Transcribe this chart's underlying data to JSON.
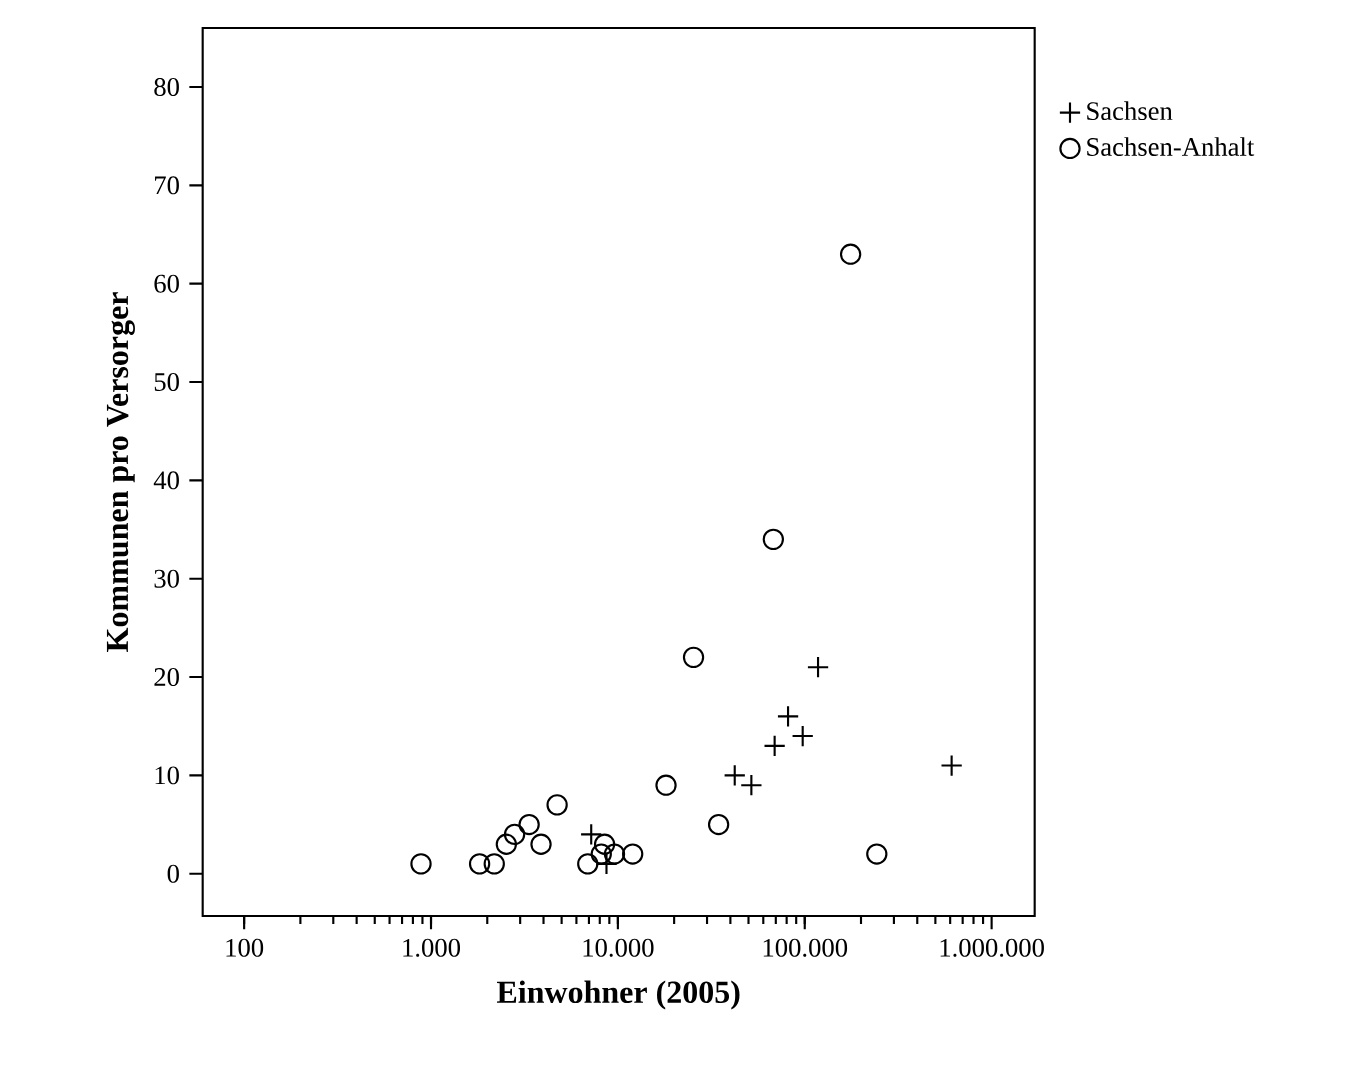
{
  "chart_data": {
    "type": "scatter",
    "xlabel": "Einwohner (2005)",
    "ylabel": "Kommunen pro Versorger",
    "log": "x",
    "legend": "right",
    "grid": false,
    "xlim": [
      60,
      1700000
    ],
    "ylim": [
      -4.3,
      86
    ],
    "xticks": [
      100,
      {
        "value": 1000,
        "label": "1.000"
      },
      {
        "value": 10000,
        "label": "10.000"
      },
      {
        "value": 100000,
        "label": "100.000"
      },
      {
        "value": 1000000,
        "label": "1.000.000"
      }
    ],
    "yticks": [
      0,
      10,
      20,
      30,
      40,
      50,
      60,
      70,
      80
    ],
    "series": [
      {
        "name": "Sachsen",
        "color": "#000000",
        "marker": "cross",
        "x": [
          7200,
          8690,
          42200,
          51800,
          69000,
          81400,
          97500,
          117800,
          611000
        ],
        "values": [
          4,
          1,
          10,
          9,
          13,
          16,
          14,
          21,
          11
        ]
      },
      {
        "name": "Sachsen-Anhalt",
        "color": "#000000",
        "marker": "circle",
        "x": [
          884,
          1820,
          2180,
          2530,
          2800,
          3350,
          3880,
          4730,
          6900,
          8490,
          8150,
          9590,
          12000,
          18100,
          34600,
          25400,
          67900,
          176000,
          243000
        ],
        "values": [
          1,
          1,
          1,
          3,
          4,
          5,
          3,
          7,
          1,
          3,
          2,
          2,
          2,
          9,
          5,
          22,
          34,
          63,
          2
        ]
      }
    ]
  }
}
